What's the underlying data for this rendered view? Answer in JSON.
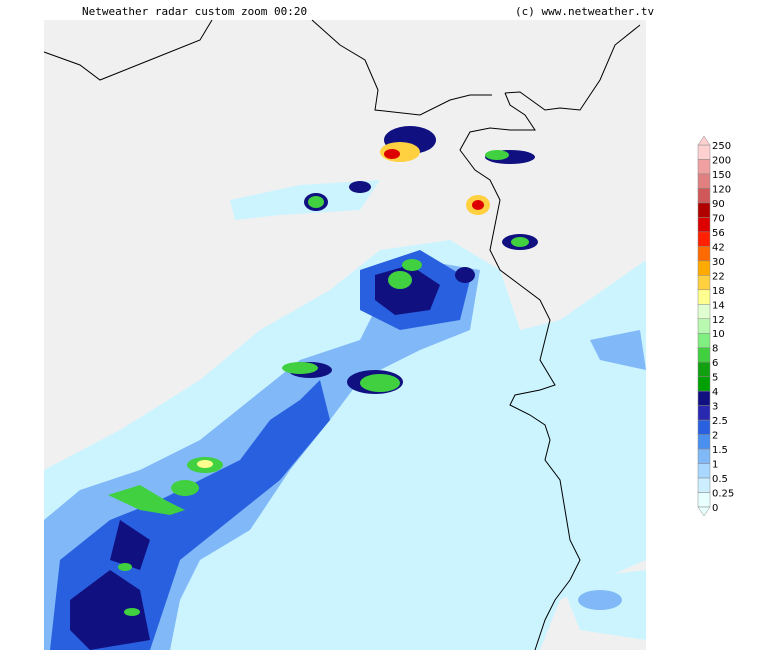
{
  "header": {
    "title": "Netweather radar custom zoom 00:20",
    "credit": "(c) www.netweather.tv"
  },
  "legend": {
    "labels": [
      "250",
      "200",
      "150",
      "120",
      "90",
      "70",
      "56",
      "42",
      "30",
      "22",
      "18",
      "14",
      "12",
      "10",
      "8",
      "6",
      "5",
      "4",
      "3",
      "2.5",
      "2",
      "1.5",
      "1",
      "0.5",
      "0.25",
      "0"
    ],
    "colors": [
      "#ffd0d0",
      "#f0a0a0",
      "#e08080",
      "#d05858",
      "#b00000",
      "#dd0000",
      "#ff2000",
      "#ff6a00",
      "#ffaa00",
      "#ffd040",
      "#ffff90",
      "#e0ffd0",
      "#b8f8b0",
      "#80ee80",
      "#40d040",
      "#10a010",
      "#00a000",
      "#101080",
      "#2828b0",
      "#2860e0",
      "#4a90f0",
      "#80b8f8",
      "#a8d8ff",
      "#cceeff",
      "#e8ffff"
    ]
  }
}
